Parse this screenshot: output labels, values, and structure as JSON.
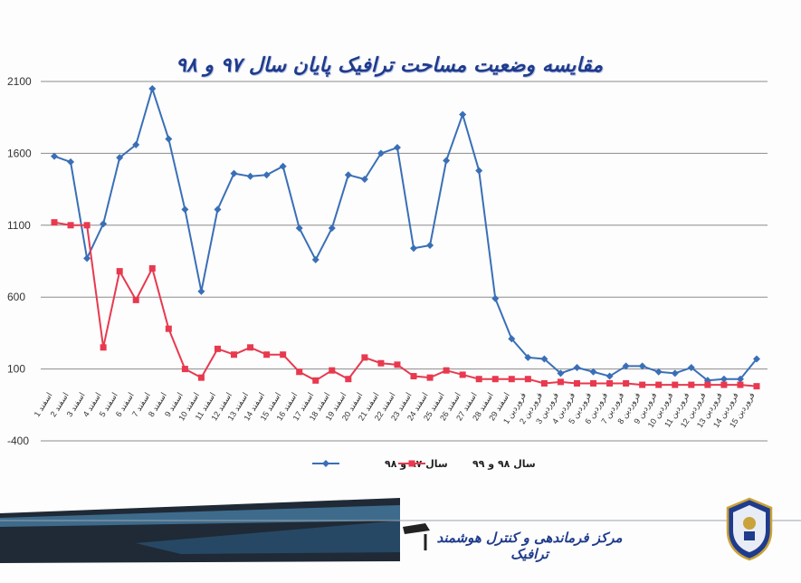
{
  "chart_data": {
    "type": "line",
    "title": "مقایسه وضعیت مساحت ترافیک پایان سال ۹۷ و ۹۸",
    "ylim": [
      -400,
      2100
    ],
    "yticks": [
      2100,
      1600,
      1100,
      600,
      100,
      -400
    ],
    "grid": true,
    "legend_position": "bottom",
    "categories": [
      "1 اسفند",
      "2 اسفند",
      "3 اسفند",
      "4 اسفند",
      "5 اسفند",
      "6 اسفند",
      "7 اسفند",
      "8 اسفند",
      "9 اسفند",
      "10 اسفند",
      "11 اسفند",
      "12 اسفند",
      "13 اسفند",
      "14 اسفند",
      "15 اسفند",
      "16 اسفند",
      "17 اسفند",
      "18 اسفند",
      "19 اسفند",
      "20 اسفند",
      "21 اسفند",
      "22 اسفند",
      "23 اسفند",
      "24 اسفند",
      "25 اسفند",
      "26 اسفند",
      "27 اسفند",
      "28 اسفند",
      "29 اسفند",
      "1 فروردین",
      "2 فروردین",
      "3 فروردین",
      "4 فروردین",
      "5 فروردین",
      "6 فروردین",
      "7 فروردین",
      "8 فروردین",
      "9 فروردین",
      "10 فروردین",
      "11 فروردین",
      "12 فروردین",
      "13 فروردین",
      "14 فروردین",
      "15 فروردین"
    ],
    "series": [
      {
        "name": "سال ۹۷ و ۹۸",
        "color": "#3a6fb7",
        "marker": "diamond",
        "values": [
          1580,
          1540,
          870,
          1110,
          1570,
          1660,
          2050,
          1700,
          1210,
          640,
          1210,
          1460,
          1440,
          1450,
          1510,
          1080,
          860,
          1080,
          1450,
          1420,
          1600,
          1640,
          940,
          960,
          1550,
          1870,
          1480,
          590,
          310,
          180,
          170,
          70,
          110,
          80,
          50,
          120,
          120,
          80,
          70,
          110,
          20,
          30,
          30,
          170
        ]
      },
      {
        "name": "سال ۹۸ و ۹۹",
        "color": "#e8394f",
        "marker": "square",
        "values": [
          1120,
          1100,
          1100,
          250,
          780,
          580,
          800,
          380,
          100,
          40,
          240,
          200,
          250,
          200,
          200,
          80,
          20,
          90,
          30,
          180,
          140,
          130,
          50,
          40,
          90,
          60,
          30,
          30,
          30,
          30,
          0,
          10,
          0,
          0,
          0,
          0,
          -10,
          -10,
          -10,
          -10,
          -10,
          -10,
          -10,
          -20
        ]
      }
    ]
  },
  "footer": {
    "text": "مرکز فرماندهی و کنترل هوشمند ترافیک"
  }
}
